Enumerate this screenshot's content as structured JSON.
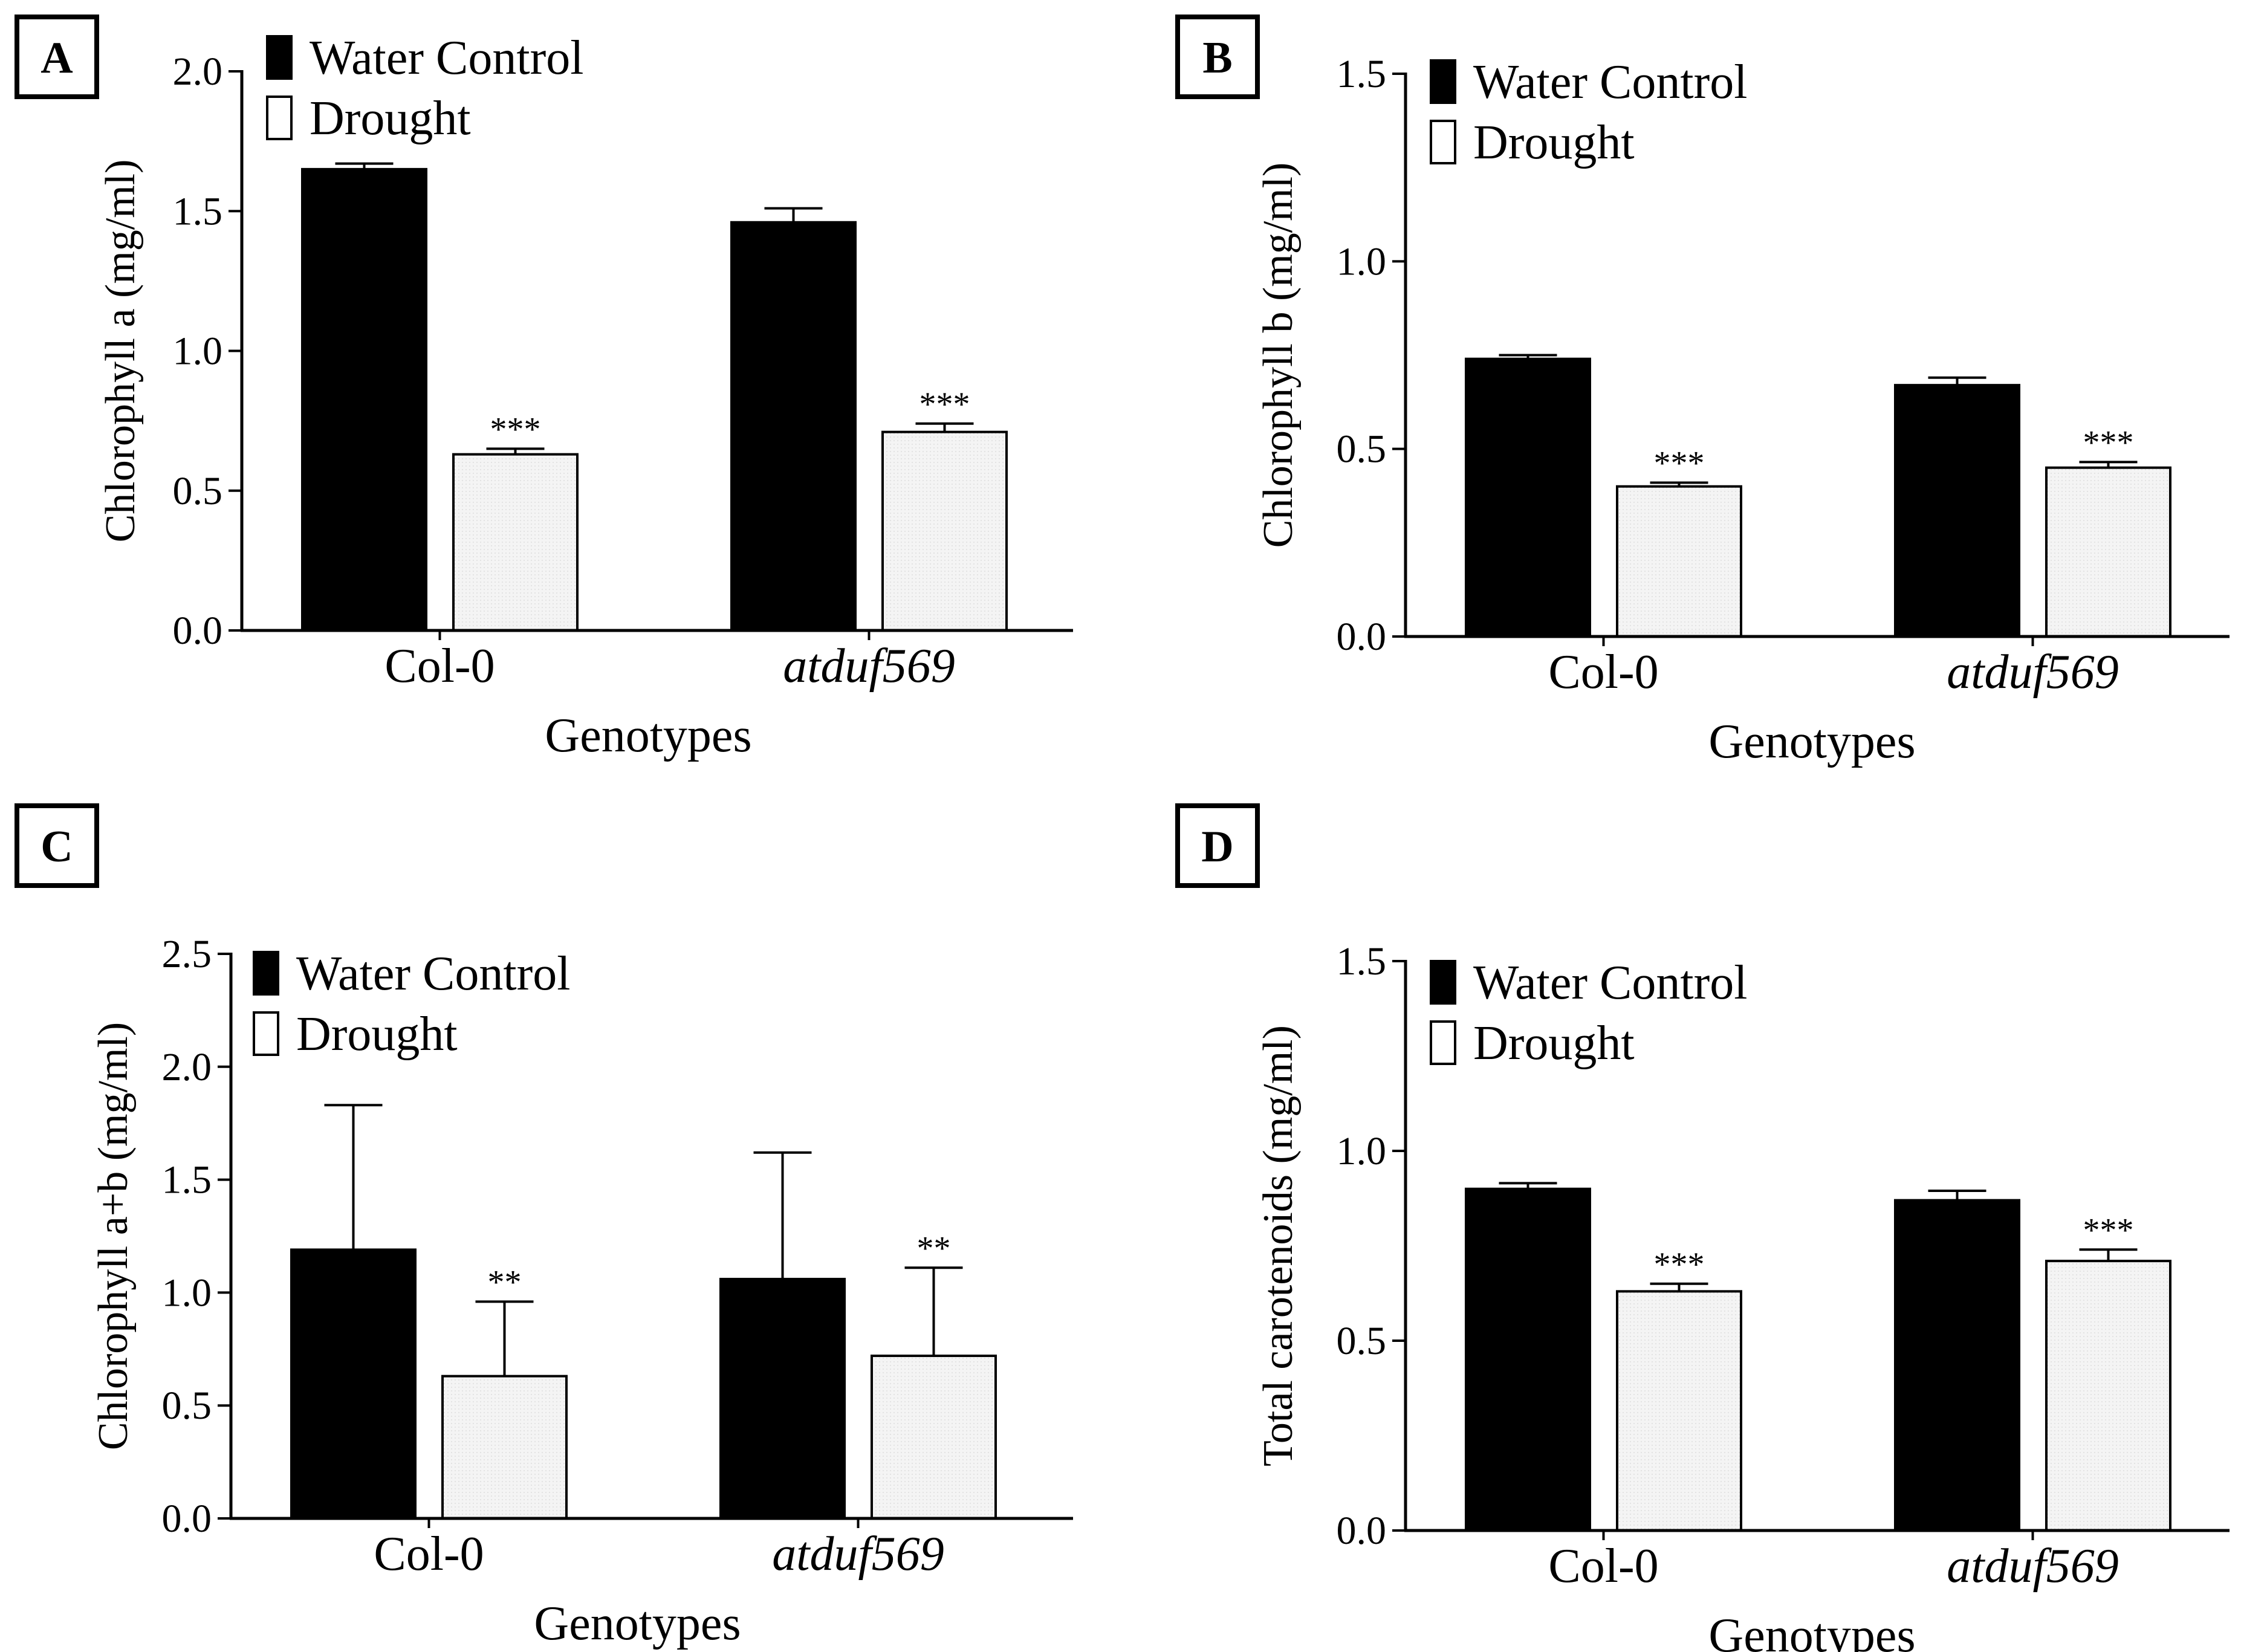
{
  "figure": {
    "legend": {
      "control_label": "Water Control",
      "drought_label": "Drought"
    },
    "colors": {
      "control": "#000000",
      "drought": "#f2f2f2",
      "axis": "#000000"
    }
  },
  "chart_data": [
    {
      "panel": "A",
      "type": "bar",
      "categories": [
        "Col-0",
        "atduf569"
      ],
      "series": [
        {
          "name": "Water Control",
          "values": [
            1.65,
            1.46
          ],
          "errors": [
            0.02,
            0.05
          ]
        },
        {
          "name": "Drought",
          "values": [
            0.63,
            0.71
          ],
          "errors": [
            0.02,
            0.03
          ]
        }
      ],
      "significance": [
        "***",
        "***"
      ],
      "xlabel": "Genotypes",
      "ylabel": "Chlorophyll a (mg/ml)",
      "ylim": [
        0,
        2.0
      ],
      "yticks": [
        0.0,
        0.5,
        1.0,
        1.5,
        2.0
      ],
      "ytick_labels": [
        "0.0",
        "0.5",
        "1.0",
        "1.5",
        "2.0"
      ],
      "legend_position": "top-left"
    },
    {
      "panel": "B",
      "type": "bar",
      "categories": [
        "Col-0",
        "atduf569"
      ],
      "series": [
        {
          "name": "Water Control",
          "values": [
            0.74,
            0.67
          ],
          "errors": [
            0.01,
            0.02
          ]
        },
        {
          "name": "Drought",
          "values": [
            0.4,
            0.45
          ],
          "errors": [
            0.01,
            0.015
          ]
        }
      ],
      "significance": [
        "***",
        "***"
      ],
      "xlabel": "Genotypes",
      "ylabel": "Chlorophyll b (mg/ml)",
      "ylim": [
        0,
        1.5
      ],
      "yticks": [
        0.0,
        0.5,
        1.0,
        1.5
      ],
      "ytick_labels": [
        "0.0",
        "0.5",
        "1.0",
        "1.5"
      ],
      "legend_position": "top-left"
    },
    {
      "panel": "C",
      "type": "bar",
      "categories": [
        "Col-0",
        "atduf569"
      ],
      "series": [
        {
          "name": "Water Control",
          "values": [
            1.19,
            1.06
          ],
          "errors": [
            0.64,
            0.56
          ]
        },
        {
          "name": "Drought",
          "values": [
            0.63,
            0.72
          ],
          "errors": [
            0.33,
            0.39
          ]
        }
      ],
      "significance": [
        "**",
        "**"
      ],
      "xlabel": "Genotypes",
      "ylabel": "Chlorophyll a+b (mg/ml)",
      "ylim": [
        0,
        2.5
      ],
      "yticks": [
        0.0,
        0.5,
        1.0,
        1.5,
        2.0,
        2.5
      ],
      "ytick_labels": [
        "0.0",
        "0.5",
        "1.0",
        "1.5",
        "2.0",
        "2.5"
      ],
      "legend_position": "top-left"
    },
    {
      "panel": "D",
      "type": "bar",
      "categories": [
        "Col-0",
        "atduf569"
      ],
      "series": [
        {
          "name": "Water Control",
          "values": [
            0.9,
            0.87
          ],
          "errors": [
            0.015,
            0.025
          ]
        },
        {
          "name": "Drought",
          "values": [
            0.63,
            0.71
          ],
          "errors": [
            0.02,
            0.03
          ]
        }
      ],
      "significance": [
        "***",
        "***"
      ],
      "xlabel": "Genotypes",
      "ylabel": "Total carotenoids (mg/ml)",
      "ylim": [
        0,
        1.5
      ],
      "yticks": [
        0.0,
        0.5,
        1.0,
        1.5
      ],
      "ytick_labels": [
        "0.0",
        "0.5",
        "1.0",
        "1.5"
      ],
      "legend_position": "top-left"
    }
  ]
}
